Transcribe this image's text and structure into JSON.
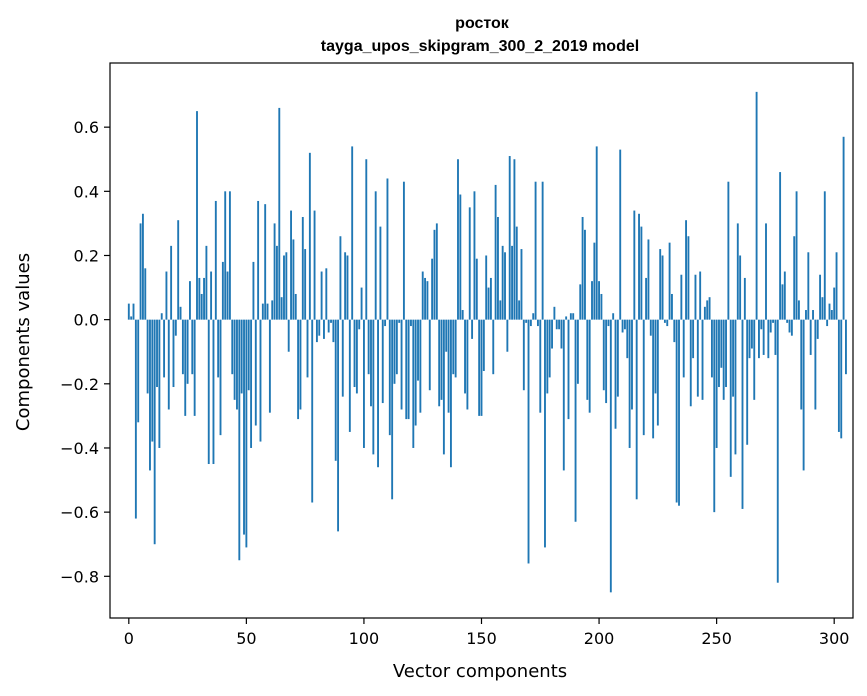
{
  "chart_data": {
    "type": "bar",
    "title": "росток",
    "subtitle": "tayga_upos_skipgram_300_2_2019 model",
    "xlabel": "Vector components",
    "ylabel": "Components values",
    "xlim": [
      -8,
      308
    ],
    "ylim": [
      -0.93,
      0.8
    ],
    "xticks": [
      0,
      50,
      100,
      150,
      200,
      250,
      300
    ],
    "xtick_labels": [
      "0",
      "50",
      "100",
      "150",
      "200",
      "250",
      "300"
    ],
    "yticks": [
      0.6,
      0.4,
      0.2,
      0.0,
      -0.2,
      -0.4,
      -0.6,
      -0.8
    ],
    "ytick_labels": [
      "0.6",
      "0.4",
      "0.2",
      "0.0",
      "−0.2",
      "−0.4",
      "−0.6",
      "−0.8"
    ],
    "grid": false,
    "bar_color": "#1f77b4",
    "values": [
      0.05,
      0.01,
      0.05,
      -0.62,
      -0.32,
      0.3,
      0.33,
      0.16,
      -0.23,
      -0.47,
      -0.38,
      -0.7,
      -0.21,
      -0.4,
      0.02,
      -0.18,
      0.15,
      -0.28,
      0.23,
      -0.21,
      -0.05,
      0.31,
      0.04,
      -0.17,
      -0.3,
      -0.2,
      0.12,
      -0.17,
      -0.3,
      0.65,
      0.13,
      0.08,
      0.13,
      0.23,
      -0.45,
      0.15,
      -0.45,
      0.37,
      -0.18,
      -0.36,
      0.18,
      0.4,
      0.15,
      0.4,
      -0.17,
      -0.25,
      -0.28,
      -0.75,
      -0.23,
      -0.67,
      -0.71,
      -0.22,
      -0.4,
      0.18,
      -0.33,
      0.37,
      -0.38,
      0.05,
      0.36,
      0.05,
      -0.29,
      0.06,
      0.3,
      0.23,
      0.66,
      0.07,
      0.2,
      0.21,
      -0.1,
      0.34,
      0.25,
      0.08,
      -0.31,
      -0.28,
      0.32,
      0.22,
      -0.18,
      0.52,
      -0.57,
      0.34,
      -0.07,
      -0.05,
      0.15,
      -0.06,
      0.16,
      -0.04,
      -0.01,
      -0.07,
      -0.44,
      -0.66,
      0.26,
      -0.24,
      0.21,
      0.2,
      -0.35,
      0.54,
      -0.21,
      -0.23,
      -0.03,
      0.1,
      -0.4,
      0.5,
      -0.17,
      -0.27,
      -0.42,
      0.4,
      -0.46,
      0.29,
      -0.26,
      -0.02,
      0.44,
      -0.36,
      -0.56,
      -0.2,
      -0.17,
      -0.01,
      -0.28,
      0.43,
      -0.31,
      -0.31,
      -0.02,
      -0.4,
      -0.33,
      -0.19,
      -0.29,
      0.15,
      0.13,
      0.12,
      -0.22,
      0.19,
      0.28,
      0.3,
      -0.27,
      -0.25,
      -0.42,
      -0.1,
      -0.29,
      -0.46,
      -0.17,
      -0.18,
      0.5,
      0.39,
      0.03,
      -0.23,
      -0.28,
      0.35,
      -0.06,
      0.4,
      0.19,
      -0.3,
      -0.3,
      -0.16,
      0.2,
      0.1,
      0.13,
      -0.17,
      0.42,
      0.32,
      0.06,
      0.23,
      0.21,
      -0.1,
      0.51,
      0.23,
      0.5,
      0.29,
      0.06,
      0.22,
      -0.22,
      -0.01,
      -0.76,
      -0.02,
      0.02,
      0.43,
      -0.02,
      -0.29,
      0.43,
      -0.71,
      -0.23,
      -0.18,
      -0.09,
      0.04,
      -0.03,
      -0.03,
      -0.09,
      -0.47,
      0.01,
      -0.31,
      0.02,
      0.02,
      -0.63,
      -0.2,
      0.11,
      0.32,
      0.28,
      -0.25,
      -0.29,
      0.12,
      0.24,
      0.54,
      0.12,
      0.08,
      -0.22,
      -0.26,
      -0.02,
      -0.85,
      0.02,
      -0.34,
      -0.24,
      0.53,
      -0.04,
      -0.03,
      -0.12,
      -0.4,
      -0.28,
      0.34,
      -0.56,
      0.33,
      0.29,
      -0.36,
      0.13,
      0.25,
      -0.05,
      -0.37,
      -0.23,
      -0.33,
      0.22,
      0.2,
      -0.01,
      -0.02,
      0.24,
      0.08,
      -0.07,
      -0.57,
      -0.58,
      0.14,
      -0.18,
      0.31,
      0.26,
      -0.27,
      -0.12,
      0.14,
      -0.24,
      0.15,
      -0.25,
      0.04,
      0.06,
      0.07,
      -0.18,
      -0.6,
      -0.4,
      -0.21,
      -0.15,
      -0.25,
      -0.21,
      0.43,
      -0.49,
      -0.24,
      -0.42,
      0.3,
      0.2,
      -0.59,
      0.13,
      -0.39,
      -0.12,
      -0.09,
      -0.25,
      0.71,
      -0.12,
      -0.03,
      -0.11,
      0.3,
      -0.12,
      -0.04,
      -0.01,
      -0.11,
      -0.82,
      0.46,
      0.11,
      0.15,
      -0.01,
      -0.04,
      -0.05,
      0.26,
      0.4,
      0.06,
      -0.28,
      -0.47,
      0.03,
      0.21,
      -0.11,
      0.03,
      -0.28,
      -0.06,
      0.14,
      0.07,
      0.4,
      -0.02,
      0.05,
      0.03,
      0.1,
      0.21,
      -0.35,
      -0.37,
      0.57,
      -0.17
    ]
  }
}
